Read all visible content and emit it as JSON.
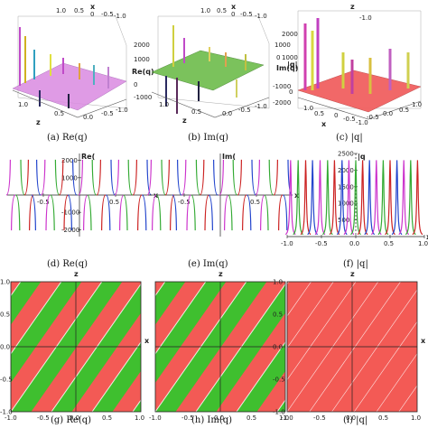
{
  "captions": [
    "(a) Re(q)",
    "(b) Im(q)",
    "(c) |q|",
    "(d) Re(q)",
    "(e) Im(q)",
    "(f) |q|",
    "(g) Re(q)",
    "(h) Im(q)",
    "(i) |q|"
  ],
  "colors": {
    "surface_a": "#d98ae0",
    "surface_b": "#6dbb4a",
    "surface_c": "#f06060",
    "density_red": "#f35a55",
    "density_green": "#3fbf2f",
    "curve_colors": [
      "#cc33cc",
      "#33aa33",
      "#cc2222",
      "#2244cc"
    ]
  },
  "panels3d": [
    {
      "id": "a",
      "axis_labels": {
        "x": "x",
        "z": "z",
        "v": "Re(q)"
      },
      "v_ticks": [
        "2000",
        "1000",
        "0",
        "-1000"
      ],
      "x_ticks": [
        "1.0",
        "0.5",
        "0",
        "-0.5",
        "-1.0"
      ],
      "z_ticks": [
        "-1.0",
        "-0.5",
        "0.0",
        "0.5",
        "1.0"
      ]
    },
    {
      "id": "b",
      "axis_labels": {
        "x": "x",
        "z": "z",
        "v": "Im(q)"
      },
      "v_ticks": [
        "1000",
        "0",
        "-1000",
        "-2000"
      ],
      "x_ticks": [
        "1.0",
        "0.5",
        "0",
        "-0.5",
        "-1.0"
      ],
      "z_ticks": [
        "-1.0",
        "-0.5",
        "0.0",
        "0.5",
        "1.0"
      ]
    },
    {
      "id": "c",
      "axis_labels": {
        "x": "x",
        "z": "z",
        "v": "|q|"
      },
      "v_ticks": [
        "2000",
        "1000",
        "0"
      ],
      "x_ticks": [
        "1.0",
        "0.5",
        "0",
        "-0.5",
        "-1.0"
      ],
      "z_ticks": [
        "-1.0",
        "-0.5",
        "0.0",
        "0.5",
        "1.0"
      ]
    }
  ],
  "chart_data": [
    {
      "type": "line",
      "panel": "d",
      "ylabel": "Re(",
      "xlabel": "x",
      "xlim": [
        -1,
        1
      ],
      "ylim": [
        -2400,
        2400
      ],
      "x_ticks": [
        -0.5,
        0.5
      ],
      "y_ticks": [
        2000,
        1000,
        -1000,
        -2000
      ],
      "pole_positions": [
        -0.95,
        -0.82,
        -0.7,
        -0.6,
        -0.47,
        -0.34,
        -0.22,
        -0.1,
        0.05,
        0.17,
        0.3,
        0.43,
        0.55,
        0.67,
        0.8,
        0.93
      ]
    },
    {
      "type": "line",
      "panel": "e",
      "ylabel": "Im(",
      "xlabel": "x",
      "xlim": [
        -1,
        1
      ],
      "ylim": [
        -2400,
        2400
      ],
      "x_ticks": [
        -0.5,
        0.5
      ],
      "y_ticks": [],
      "pole_positions": [
        -0.95,
        -0.82,
        -0.7,
        -0.6,
        -0.47,
        -0.34,
        -0.22,
        -0.1,
        0.05,
        0.17,
        0.3,
        0.43,
        0.55,
        0.67,
        0.8,
        0.93
      ]
    },
    {
      "type": "line",
      "panel": "f",
      "ylabel": "|q",
      "xlabel": "x",
      "xlim": [
        -1,
        1
      ],
      "ylim": [
        0,
        2500
      ],
      "x_ticks": [
        -1.0,
        -0.5,
        0.0,
        0.5,
        1.0
      ],
      "y_ticks": [
        2500,
        2000,
        1500,
        1000,
        500
      ],
      "pole_positions": [
        -0.95,
        -0.84,
        -0.73,
        -0.63,
        -0.52,
        -0.41,
        -0.31,
        -0.2,
        -0.1,
        0.0,
        0.1,
        0.2,
        0.3,
        0.4,
        0.5,
        0.6,
        0.7,
        0.8,
        0.9
      ]
    },
    {
      "type": "heatmap",
      "panel": "g",
      "xlabel": "z",
      "ylabel": "x",
      "xlim": [
        -1,
        1
      ],
      "ylim": [
        -1,
        1
      ],
      "ticks": [
        -1.0,
        -0.5,
        0.0,
        0.5,
        1.0
      ],
      "bands": "red-green"
    },
    {
      "type": "heatmap",
      "panel": "h",
      "xlabel": "z",
      "ylabel": "x",
      "xlim": [
        -1,
        1
      ],
      "ylim": [
        -1,
        1
      ],
      "ticks": [
        -1.0,
        -0.5,
        0.0,
        0.5,
        1.0
      ],
      "bands": "red-green"
    },
    {
      "type": "heatmap",
      "panel": "i",
      "xlabel": "z",
      "ylabel": "x",
      "xlim": [
        -1,
        1
      ],
      "ylim": [
        -1,
        1
      ],
      "ticks": [
        -1.0,
        -0.5,
        0.0,
        0.5,
        1.0
      ],
      "bands": "red"
    }
  ]
}
